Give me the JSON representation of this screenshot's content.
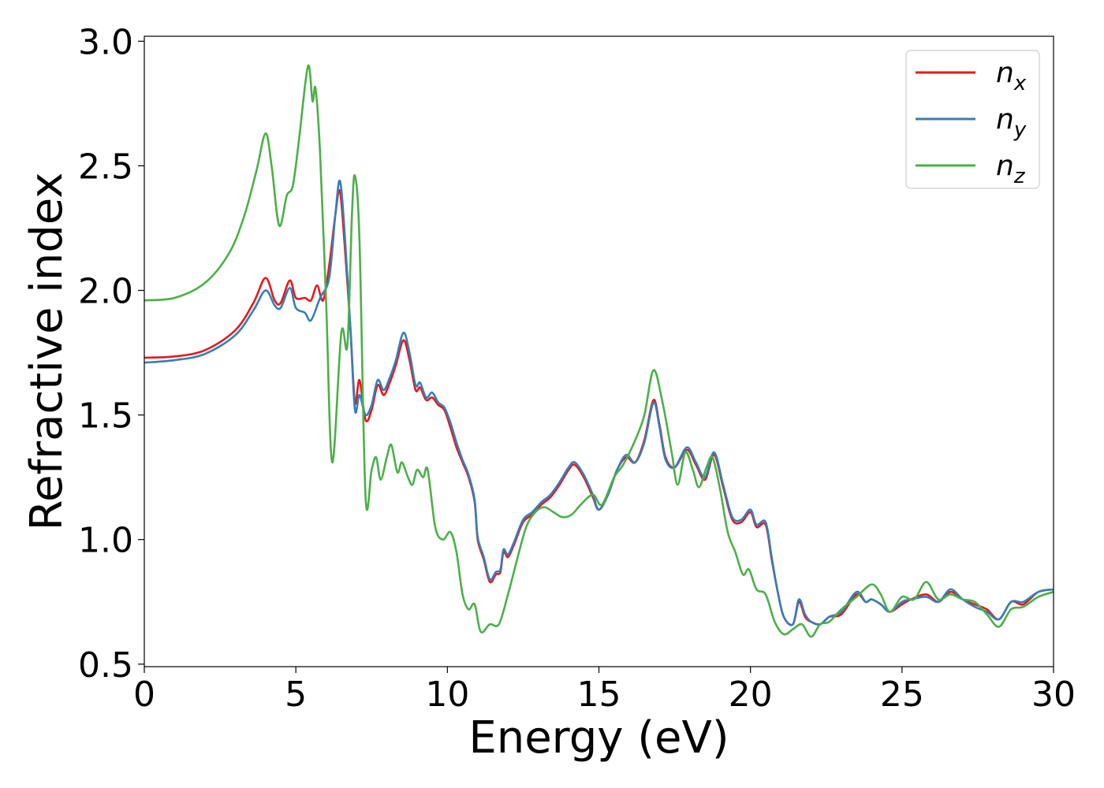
{
  "chart_data": {
    "type": "line",
    "title": "",
    "xlabel": "Energy (eV)",
    "ylabel": "Refractive index",
    "xlim": [
      0,
      30
    ],
    "ylim": [
      0.49,
      3.02
    ],
    "xticks": [
      0,
      5,
      10,
      15,
      20,
      25,
      30
    ],
    "xtick_labels": [
      "0",
      "5",
      "10",
      "15",
      "20",
      "25",
      "30"
    ],
    "yticks": [
      0.5,
      1.0,
      1.5,
      2.0,
      2.5,
      3.0
    ],
    "ytick_labels": [
      "0.5",
      "1.0",
      "1.5",
      "2.0",
      "2.5",
      "3.0"
    ],
    "grid": false,
    "legend_position": "top-right",
    "series": [
      {
        "name": "n",
        "subscript": "x",
        "color": "#e41a1c",
        "points": [
          [
            0,
            1.73
          ],
          [
            1,
            1.735
          ],
          [
            2,
            1.76
          ],
          [
            3,
            1.84
          ],
          [
            3.6,
            1.95
          ],
          [
            4.0,
            2.05
          ],
          [
            4.3,
            1.96
          ],
          [
            4.5,
            1.95
          ],
          [
            4.8,
            2.04
          ],
          [
            5.0,
            1.97
          ],
          [
            5.3,
            1.97
          ],
          [
            5.5,
            1.96
          ],
          [
            5.7,
            2.02
          ],
          [
            5.9,
            1.96
          ],
          [
            6.1,
            2.1
          ],
          [
            6.3,
            2.3
          ],
          [
            6.45,
            2.4
          ],
          [
            6.6,
            2.2
          ],
          [
            6.8,
            1.85
          ],
          [
            6.95,
            1.55
          ],
          [
            7.1,
            1.64
          ],
          [
            7.3,
            1.48
          ],
          [
            7.5,
            1.52
          ],
          [
            7.7,
            1.62
          ],
          [
            7.9,
            1.58
          ],
          [
            8.1,
            1.63
          ],
          [
            8.3,
            1.7
          ],
          [
            8.55,
            1.8
          ],
          [
            8.75,
            1.72
          ],
          [
            8.95,
            1.6
          ],
          [
            9.1,
            1.61
          ],
          [
            9.3,
            1.56
          ],
          [
            9.5,
            1.57
          ],
          [
            9.7,
            1.54
          ],
          [
            9.9,
            1.52
          ],
          [
            10.1,
            1.45
          ],
          [
            10.3,
            1.37
          ],
          [
            10.5,
            1.31
          ],
          [
            10.7,
            1.25
          ],
          [
            10.9,
            1.15
          ],
          [
            11.0,
            1.0
          ],
          [
            11.2,
            0.92
          ],
          [
            11.4,
            0.83
          ],
          [
            11.6,
            0.86
          ],
          [
            11.75,
            0.87
          ],
          [
            11.85,
            0.95
          ],
          [
            12.0,
            0.93
          ],
          [
            12.2,
            0.98
          ],
          [
            12.5,
            1.07
          ],
          [
            12.8,
            1.1
          ],
          [
            13.1,
            1.14
          ],
          [
            13.4,
            1.17
          ],
          [
            13.7,
            1.22
          ],
          [
            14.0,
            1.28
          ],
          [
            14.2,
            1.3
          ],
          [
            14.5,
            1.25
          ],
          [
            14.8,
            1.17
          ],
          [
            15.0,
            1.12
          ],
          [
            15.3,
            1.18
          ],
          [
            15.6,
            1.28
          ],
          [
            15.9,
            1.33
          ],
          [
            16.2,
            1.31
          ],
          [
            16.5,
            1.4
          ],
          [
            16.8,
            1.56
          ],
          [
            17.0,
            1.46
          ],
          [
            17.2,
            1.33
          ],
          [
            17.5,
            1.29
          ],
          [
            17.9,
            1.36
          ],
          [
            18.2,
            1.3
          ],
          [
            18.5,
            1.24
          ],
          [
            18.8,
            1.34
          ],
          [
            19.1,
            1.21
          ],
          [
            19.4,
            1.08
          ],
          [
            19.7,
            1.07
          ],
          [
            20.0,
            1.11
          ],
          [
            20.2,
            1.05
          ],
          [
            20.5,
            1.06
          ],
          [
            20.7,
            0.92
          ],
          [
            20.9,
            0.79
          ],
          [
            21.1,
            0.69
          ],
          [
            21.4,
            0.66
          ],
          [
            21.6,
            0.75
          ],
          [
            21.8,
            0.69
          ],
          [
            22.0,
            0.67
          ],
          [
            22.3,
            0.66
          ],
          [
            22.6,
            0.69
          ],
          [
            23.0,
            0.7
          ],
          [
            23.5,
            0.78
          ],
          [
            23.8,
            0.75
          ],
          [
            24.0,
            0.76
          ],
          [
            24.3,
            0.74
          ],
          [
            24.6,
            0.71
          ],
          [
            25.0,
            0.74
          ],
          [
            25.3,
            0.76
          ],
          [
            25.8,
            0.78
          ],
          [
            26.2,
            0.75
          ],
          [
            26.6,
            0.79
          ],
          [
            27.0,
            0.76
          ],
          [
            27.4,
            0.74
          ],
          [
            27.8,
            0.72
          ],
          [
            28.2,
            0.68
          ],
          [
            28.6,
            0.75
          ],
          [
            29.0,
            0.74
          ],
          [
            29.5,
            0.79
          ],
          [
            30,
            0.8
          ]
        ]
      },
      {
        "name": "n",
        "subscript": "y",
        "color": "#377eb8",
        "points": [
          [
            0,
            1.71
          ],
          [
            1,
            1.72
          ],
          [
            2,
            1.745
          ],
          [
            3,
            1.82
          ],
          [
            3.6,
            1.92
          ],
          [
            4.0,
            2.0
          ],
          [
            4.3,
            1.94
          ],
          [
            4.5,
            1.93
          ],
          [
            4.8,
            2.01
          ],
          [
            5.0,
            1.93
          ],
          [
            5.3,
            1.91
          ],
          [
            5.5,
            1.88
          ],
          [
            5.8,
            1.97
          ],
          [
            6.1,
            2.05
          ],
          [
            6.3,
            2.3
          ],
          [
            6.45,
            2.44
          ],
          [
            6.6,
            2.25
          ],
          [
            6.8,
            1.85
          ],
          [
            6.95,
            1.52
          ],
          [
            7.1,
            1.58
          ],
          [
            7.3,
            1.5
          ],
          [
            7.5,
            1.54
          ],
          [
            7.7,
            1.64
          ],
          [
            7.9,
            1.6
          ],
          [
            8.1,
            1.65
          ],
          [
            8.3,
            1.72
          ],
          [
            8.55,
            1.83
          ],
          [
            8.75,
            1.75
          ],
          [
            8.95,
            1.62
          ],
          [
            9.1,
            1.63
          ],
          [
            9.3,
            1.57
          ],
          [
            9.5,
            1.59
          ],
          [
            9.7,
            1.55
          ],
          [
            9.9,
            1.53
          ],
          [
            10.1,
            1.47
          ],
          [
            10.3,
            1.39
          ],
          [
            10.5,
            1.32
          ],
          [
            10.7,
            1.26
          ],
          [
            10.9,
            1.16
          ],
          [
            11.0,
            1.01
          ],
          [
            11.2,
            0.93
          ],
          [
            11.4,
            0.84
          ],
          [
            11.6,
            0.87
          ],
          [
            11.75,
            0.88
          ],
          [
            11.85,
            0.96
          ],
          [
            12.0,
            0.94
          ],
          [
            12.2,
            0.99
          ],
          [
            12.5,
            1.08
          ],
          [
            12.8,
            1.11
          ],
          [
            13.1,
            1.15
          ],
          [
            13.4,
            1.18
          ],
          [
            13.7,
            1.23
          ],
          [
            14.0,
            1.29
          ],
          [
            14.2,
            1.31
          ],
          [
            14.5,
            1.26
          ],
          [
            14.8,
            1.18
          ],
          [
            15.0,
            1.12
          ],
          [
            15.3,
            1.18
          ],
          [
            15.6,
            1.28
          ],
          [
            15.9,
            1.34
          ],
          [
            16.2,
            1.31
          ],
          [
            16.5,
            1.39
          ],
          [
            16.8,
            1.55
          ],
          [
            17.0,
            1.45
          ],
          [
            17.2,
            1.32
          ],
          [
            17.5,
            1.29
          ],
          [
            17.9,
            1.37
          ],
          [
            18.2,
            1.31
          ],
          [
            18.5,
            1.25
          ],
          [
            18.8,
            1.35
          ],
          [
            19.1,
            1.22
          ],
          [
            19.4,
            1.09
          ],
          [
            19.7,
            1.08
          ],
          [
            20.0,
            1.12
          ],
          [
            20.2,
            1.06
          ],
          [
            20.5,
            1.07
          ],
          [
            20.7,
            0.93
          ],
          [
            20.9,
            0.79
          ],
          [
            21.1,
            0.69
          ],
          [
            21.4,
            0.66
          ],
          [
            21.6,
            0.76
          ],
          [
            21.8,
            0.7
          ],
          [
            22.0,
            0.67
          ],
          [
            22.3,
            0.66
          ],
          [
            22.6,
            0.69
          ],
          [
            23.0,
            0.71
          ],
          [
            23.5,
            0.79
          ],
          [
            23.8,
            0.75
          ],
          [
            24.0,
            0.76
          ],
          [
            24.3,
            0.74
          ],
          [
            24.6,
            0.71
          ],
          [
            25.0,
            0.75
          ],
          [
            25.3,
            0.76
          ],
          [
            25.8,
            0.77
          ],
          [
            26.2,
            0.75
          ],
          [
            26.6,
            0.8
          ],
          [
            27.0,
            0.76
          ],
          [
            27.4,
            0.73
          ],
          [
            27.8,
            0.71
          ],
          [
            28.2,
            0.68
          ],
          [
            28.6,
            0.75
          ],
          [
            29.0,
            0.75
          ],
          [
            29.5,
            0.79
          ],
          [
            30,
            0.8
          ]
        ]
      },
      {
        "name": "n",
        "subscript": "z",
        "color": "#4daf4a",
        "points": [
          [
            0,
            1.96
          ],
          [
            1,
            1.97
          ],
          [
            2,
            2.03
          ],
          [
            2.8,
            2.15
          ],
          [
            3.3,
            2.3
          ],
          [
            3.7,
            2.48
          ],
          [
            4.0,
            2.63
          ],
          [
            4.2,
            2.5
          ],
          [
            4.45,
            2.26
          ],
          [
            4.7,
            2.38
          ],
          [
            4.9,
            2.42
          ],
          [
            5.1,
            2.6
          ],
          [
            5.4,
            2.9
          ],
          [
            5.55,
            2.76
          ],
          [
            5.65,
            2.81
          ],
          [
            5.8,
            2.55
          ],
          [
            6.0,
            1.95
          ],
          [
            6.2,
            1.31
          ],
          [
            6.5,
            1.83
          ],
          [
            6.7,
            1.78
          ],
          [
            6.85,
            2.3
          ],
          [
            6.95,
            2.46
          ],
          [
            7.1,
            2.2
          ],
          [
            7.3,
            1.17
          ],
          [
            7.5,
            1.28
          ],
          [
            7.65,
            1.33
          ],
          [
            7.8,
            1.24
          ],
          [
            8.0,
            1.33
          ],
          [
            8.15,
            1.38
          ],
          [
            8.35,
            1.27
          ],
          [
            8.5,
            1.31
          ],
          [
            8.7,
            1.25
          ],
          [
            8.85,
            1.22
          ],
          [
            9.0,
            1.28
          ],
          [
            9.2,
            1.25
          ],
          [
            9.35,
            1.28
          ],
          [
            9.6,
            1.05
          ],
          [
            9.85,
            1.0
          ],
          [
            10.1,
            1.03
          ],
          [
            10.3,
            0.95
          ],
          [
            10.5,
            0.78
          ],
          [
            10.7,
            0.72
          ],
          [
            10.9,
            0.74
          ],
          [
            11.1,
            0.63
          ],
          [
            11.4,
            0.66
          ],
          [
            11.7,
            0.66
          ],
          [
            12.0,
            0.78
          ],
          [
            12.3,
            0.92
          ],
          [
            12.6,
            1.05
          ],
          [
            12.9,
            1.11
          ],
          [
            13.2,
            1.13
          ],
          [
            13.5,
            1.11
          ],
          [
            13.8,
            1.09
          ],
          [
            14.1,
            1.1
          ],
          [
            14.4,
            1.14
          ],
          [
            14.8,
            1.18
          ],
          [
            15.1,
            1.14
          ],
          [
            15.5,
            1.25
          ],
          [
            15.8,
            1.3
          ],
          [
            16.2,
            1.4
          ],
          [
            16.5,
            1.5
          ],
          [
            16.8,
            1.68
          ],
          [
            17.1,
            1.55
          ],
          [
            17.4,
            1.35
          ],
          [
            17.6,
            1.22
          ],
          [
            17.85,
            1.35
          ],
          [
            18.1,
            1.28
          ],
          [
            18.3,
            1.21
          ],
          [
            18.55,
            1.29
          ],
          [
            18.75,
            1.33
          ],
          [
            19.0,
            1.2
          ],
          [
            19.25,
            1.03
          ],
          [
            19.5,
            0.95
          ],
          [
            19.75,
            0.86
          ],
          [
            19.95,
            0.88
          ],
          [
            20.2,
            0.8
          ],
          [
            20.5,
            0.78
          ],
          [
            20.8,
            0.67
          ],
          [
            21.1,
            0.62
          ],
          [
            21.4,
            0.64
          ],
          [
            21.7,
            0.66
          ],
          [
            22.0,
            0.61
          ],
          [
            22.3,
            0.66
          ],
          [
            22.6,
            0.67
          ],
          [
            23.0,
            0.72
          ],
          [
            23.5,
            0.77
          ],
          [
            24.0,
            0.82
          ],
          [
            24.3,
            0.78
          ],
          [
            24.6,
            0.71
          ],
          [
            25.0,
            0.77
          ],
          [
            25.4,
            0.76
          ],
          [
            25.8,
            0.83
          ],
          [
            26.2,
            0.76
          ],
          [
            26.6,
            0.78
          ],
          [
            27.0,
            0.76
          ],
          [
            27.4,
            0.75
          ],
          [
            27.8,
            0.7
          ],
          [
            28.2,
            0.65
          ],
          [
            28.6,
            0.72
          ],
          [
            29.0,
            0.73
          ],
          [
            29.5,
            0.77
          ],
          [
            30,
            0.79
          ]
        ]
      }
    ]
  }
}
